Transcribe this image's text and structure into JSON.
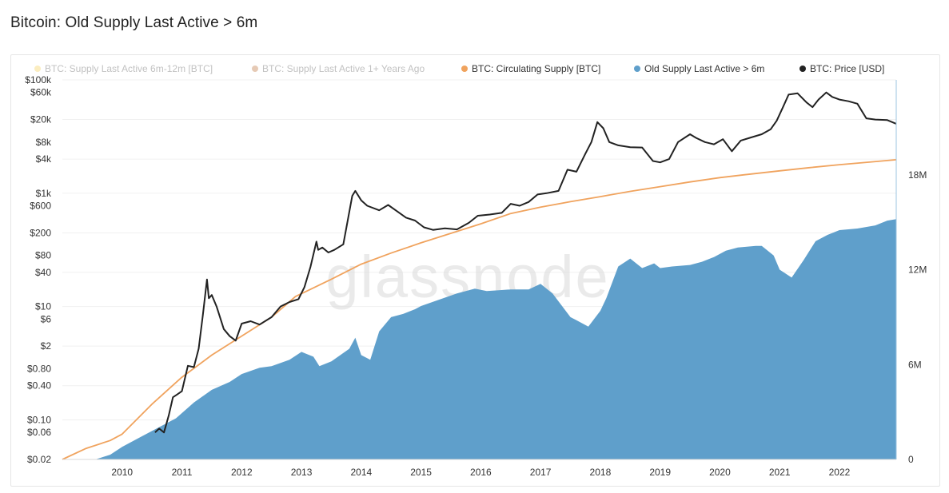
{
  "page": {
    "title": "Bitcoin: Old Supply Last Active > 6m",
    "watermark": "glassnode"
  },
  "legend": [
    {
      "label": "BTC: Supply Last Active 6m-12m [BTC]",
      "color": "#f7d774",
      "enabled": false
    },
    {
      "label": "BTC: Supply Last Active 1+ Years Ago",
      "color": "#c8895a",
      "enabled": false
    },
    {
      "label": "BTC: Circulating Supply [BTC]",
      "color": "#f0a35e",
      "enabled": true
    },
    {
      "label": "Old Supply Last Active > 6m",
      "color": "#5f9fcb",
      "enabled": true
    },
    {
      "label": "BTC: Price [USD]",
      "color": "#222222",
      "enabled": true
    }
  ],
  "chart_data": {
    "type": "area",
    "title": "Bitcoin: Old Supply Last Active > 6m",
    "x_ticks": [
      "2010",
      "2011",
      "2012",
      "2013",
      "2014",
      "2015",
      "2016",
      "2017",
      "2018",
      "2019",
      "2020",
      "2021",
      "2022"
    ],
    "x_range": [
      2009.0,
      2022.95
    ],
    "y_left": {
      "label": "",
      "scale": "log",
      "range": [
        0.02,
        100000
      ],
      "ticks": [
        {
          "value": 100000,
          "label": "$100k"
        },
        {
          "value": 60000,
          "label": "$60k"
        },
        {
          "value": 20000,
          "label": "$20k"
        },
        {
          "value": 8000,
          "label": "$8k"
        },
        {
          "value": 4000,
          "label": "$4k"
        },
        {
          "value": 1000,
          "label": "$1k"
        },
        {
          "value": 600,
          "label": "$600"
        },
        {
          "value": 200,
          "label": "$200"
        },
        {
          "value": 80,
          "label": "$80"
        },
        {
          "value": 40,
          "label": "$40"
        },
        {
          "value": 10,
          "label": "$10"
        },
        {
          "value": 6,
          "label": "$6"
        },
        {
          "value": 2,
          "label": "$2"
        },
        {
          "value": 0.8,
          "label": "$0.80"
        },
        {
          "value": 0.4,
          "label": "$0.40"
        },
        {
          "value": 0.1,
          "label": "$0.10"
        },
        {
          "value": 0.06,
          "label": "$0.06"
        },
        {
          "value": 0.02,
          "label": "$0.02"
        }
      ]
    },
    "y_right": {
      "label": "",
      "scale": "linear",
      "range": [
        0,
        24000000
      ],
      "ticks": [
        {
          "value": 0,
          "label": "0"
        },
        {
          "value": 6000000,
          "label": "6M"
        },
        {
          "value": 12000000,
          "label": "12M"
        },
        {
          "value": 18000000,
          "label": "18M"
        }
      ]
    },
    "grid": true,
    "legend_position": "top",
    "series": [
      {
        "name": "BTC: Circulating Supply [BTC]",
        "axis": "right",
        "style": "line",
        "color": "#f0a35e",
        "x": [
          2009.0,
          2009.4,
          2009.8,
          2010.0,
          2010.5,
          2011.0,
          2011.5,
          2012.0,
          2012.5,
          2012.9,
          2013.5,
          2014.0,
          2014.5,
          2015.0,
          2015.5,
          2016.0,
          2016.5,
          2017.0,
          2017.5,
          2018.0,
          2018.5,
          2019.0,
          2019.5,
          2020.0,
          2020.4,
          2021.0,
          2021.5,
          2022.0,
          2022.5,
          2022.95
        ],
        "values": [
          0,
          700000,
          1200000,
          1600000,
          3500000,
          5200000,
          6600000,
          7800000,
          9000000,
          10300000,
          11400000,
          12350000,
          13050000,
          13700000,
          14300000,
          14900000,
          15550000,
          15950000,
          16300000,
          16620000,
          16950000,
          17250000,
          17550000,
          17820000,
          18000000,
          18250000,
          18450000,
          18640000,
          18800000,
          18950000
        ]
      },
      {
        "name": "Old Supply Last Active > 6m",
        "axis": "right",
        "style": "area",
        "color": "#5f9fcb",
        "x": [
          2009.55,
          2009.8,
          2010.0,
          2010.3,
          2010.6,
          2010.9,
          2011.2,
          2011.5,
          2011.8,
          2012.0,
          2012.3,
          2012.5,
          2012.8,
          2013.0,
          2013.2,
          2013.3,
          2013.5,
          2013.8,
          2013.9,
          2014.0,
          2014.15,
          2014.3,
          2014.5,
          2014.7,
          2014.9,
          2015.0,
          2015.3,
          2015.6,
          2015.9,
          2016.1,
          2016.3,
          2016.5,
          2016.8,
          2017.0,
          2017.2,
          2017.5,
          2017.6,
          2017.8,
          2018.0,
          2018.1,
          2018.3,
          2018.5,
          2018.7,
          2018.9,
          2019.0,
          2019.2,
          2019.5,
          2019.7,
          2019.9,
          2020.1,
          2020.3,
          2020.6,
          2020.7,
          2020.9,
          2021.0,
          2021.2,
          2021.4,
          2021.6,
          2021.8,
          2022.0,
          2022.3,
          2022.6,
          2022.8,
          2022.95
        ],
        "values": [
          0,
          300000,
          800000,
          1400000,
          2000000,
          2600000,
          3600000,
          4400000,
          4900000,
          5400000,
          5800000,
          5900000,
          6300000,
          6800000,
          6500000,
          5900000,
          6200000,
          7000000,
          7700000,
          6600000,
          6300000,
          8100000,
          9000000,
          9200000,
          9500000,
          9700000,
          10100000,
          10500000,
          10800000,
          10650000,
          10700000,
          10750000,
          10750000,
          11100000,
          10500000,
          9000000,
          8800000,
          8400000,
          9400000,
          10200000,
          12200000,
          12700000,
          12100000,
          12400000,
          12100000,
          12200000,
          12300000,
          12500000,
          12800000,
          13200000,
          13400000,
          13500000,
          13500000,
          12900000,
          12000000,
          11500000,
          12600000,
          13800000,
          14200000,
          14500000,
          14600000,
          14800000,
          15100000,
          15200000
        ]
      },
      {
        "name": "BTC: Price [USD]",
        "axis": "left",
        "style": "line",
        "color": "#222222",
        "x": [
          2010.55,
          2010.62,
          2010.7,
          2010.78,
          2010.85,
          2010.92,
          2011.0,
          2011.1,
          2011.2,
          2011.28,
          2011.35,
          2011.42,
          2011.45,
          2011.5,
          2011.58,
          2011.7,
          2011.8,
          2011.9,
          2012.0,
          2012.15,
          2012.3,
          2012.5,
          2012.65,
          2012.8,
          2012.95,
          2013.05,
          2013.15,
          2013.25,
          2013.28,
          2013.35,
          2013.45,
          2013.55,
          2013.7,
          2013.85,
          2013.9,
          2014.0,
          2014.1,
          2014.3,
          2014.45,
          2014.6,
          2014.75,
          2014.9,
          2015.05,
          2015.2,
          2015.4,
          2015.6,
          2015.8,
          2015.95,
          2016.15,
          2016.35,
          2016.5,
          2016.65,
          2016.8,
          2016.95,
          2017.1,
          2017.3,
          2017.45,
          2017.6,
          2017.75,
          2017.85,
          2017.95,
          2018.05,
          2018.15,
          2018.3,
          2018.5,
          2018.7,
          2018.88,
          2019.0,
          2019.15,
          2019.3,
          2019.5,
          2019.6,
          2019.75,
          2019.9,
          2020.05,
          2020.2,
          2020.35,
          2020.5,
          2020.7,
          2020.85,
          2020.95,
          2021.05,
          2021.15,
          2021.3,
          2021.45,
          2021.55,
          2021.65,
          2021.78,
          2021.88,
          2022.0,
          2022.15,
          2022.3,
          2022.45,
          2022.6,
          2022.8,
          2022.95
        ],
        "values": [
          0.06,
          0.07,
          0.06,
          0.12,
          0.25,
          0.28,
          0.32,
          0.9,
          0.85,
          1.8,
          7,
          30,
          14,
          16,
          10,
          4,
          3,
          2.5,
          5,
          5.5,
          4.8,
          6.5,
          10,
          12,
          13.5,
          22,
          50,
          140,
          100,
          110,
          90,
          100,
          125,
          900,
          1100,
          750,
          600,
          500,
          620,
          480,
          370,
          330,
          250,
          225,
          240,
          230,
          300,
          400,
          420,
          450,
          650,
          600,
          700,
          950,
          1000,
          1100,
          2600,
          2400,
          5000,
          8000,
          18000,
          14000,
          8000,
          7000,
          6500,
          6400,
          3700,
          3500,
          4000,
          8000,
          11000,
          9500,
          8000,
          7300,
          9000,
          5500,
          8500,
          9500,
          11000,
          13500,
          19000,
          32000,
          55000,
          58000,
          40000,
          33000,
          45000,
          60000,
          50000,
          45000,
          42000,
          38000,
          21000,
          20000,
          19500,
          16800
        ]
      }
    ]
  }
}
